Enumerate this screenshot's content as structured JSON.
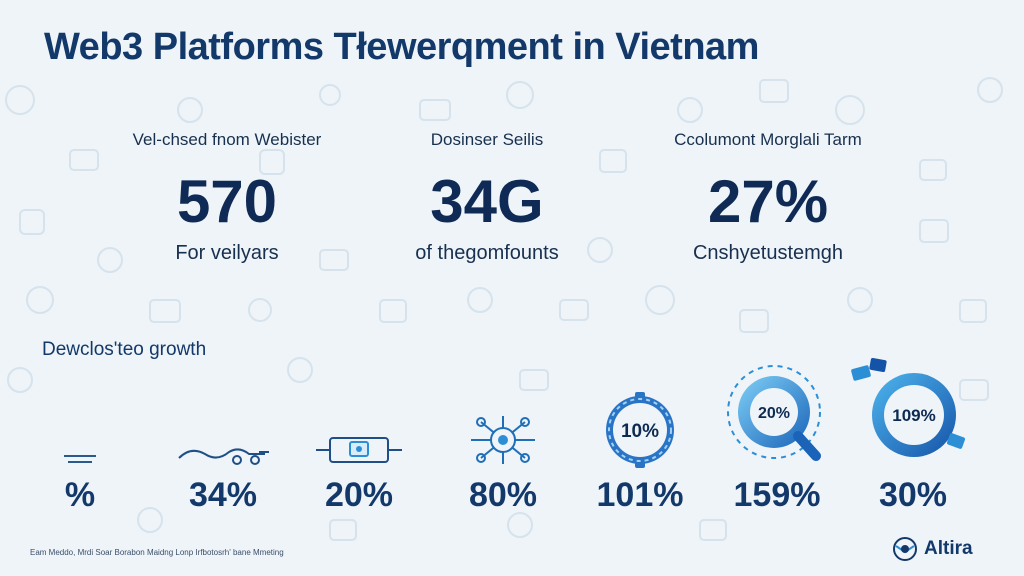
{
  "title": "Web3 Platforms Tłewerqment in Vietnam",
  "stats": [
    {
      "label": "Vel-chsed fnom Webister",
      "value": "570",
      "sub": "For veilyars"
    },
    {
      "label": "Dosinser Seilis",
      "value": "34G",
      "sub": "of thegomfounts"
    },
    {
      "label": "Ccolumont Morglali Tarm",
      "value": "27%",
      "sub": "Cnshyetustemgh"
    }
  ],
  "growth_title": "Dewclos'teo growth",
  "metrics": [
    {
      "icon": "dash-lines-icon",
      "value": "%"
    },
    {
      "icon": "car-sketch-icon",
      "value": "34%"
    },
    {
      "icon": "network-frame-icon",
      "value": "20%"
    },
    {
      "icon": "drone-network-icon",
      "value": "80%"
    },
    {
      "icon": "gauge-ring-icon",
      "value": "101%",
      "ring_label": "10%"
    },
    {
      "icon": "magnifier-ring-icon",
      "value": "159%",
      "ring_label": "20%"
    },
    {
      "icon": "progress-ring-icon",
      "value": "30%",
      "ring_label": "109%"
    }
  ],
  "footer_note": "Eam Meddo, Mrdi Soar Borabon Maidng Lonp Irfbotosrh' bane Mmeting",
  "brand": {
    "name": "Altira",
    "icon": "globe-logo-icon"
  },
  "colors": {
    "background": "#eef4f8",
    "primary": "#13386a",
    "accent": "#2c8fd6"
  }
}
